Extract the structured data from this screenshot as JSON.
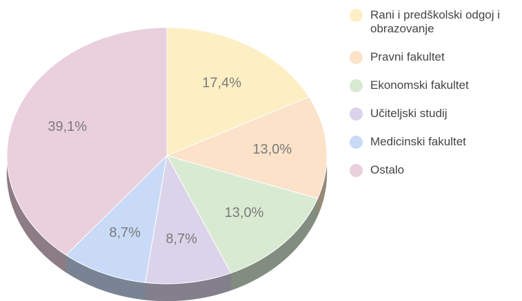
{
  "chart_data": {
    "type": "pie",
    "three_d": true,
    "categories": [
      "Rani i predškolski odgoj i obrazovanje",
      "Pravni fakultet",
      "Ekonomski fakultet",
      "Učiteljski studij",
      "Medicinski fakultet",
      "Ostalo"
    ],
    "values": [
      17.4,
      13.0,
      13.0,
      8.7,
      8.7,
      39.1
    ],
    "value_labels": [
      "17,4%",
      "13,0%",
      "13,0%",
      "8,7%",
      "8,7%",
      "39,1%"
    ],
    "colors": [
      "#fdefc4",
      "#fbe2c8",
      "#d9ead3",
      "#dbd3e9",
      "#c9daf7",
      "#eacfdc"
    ],
    "legend": "right"
  }
}
